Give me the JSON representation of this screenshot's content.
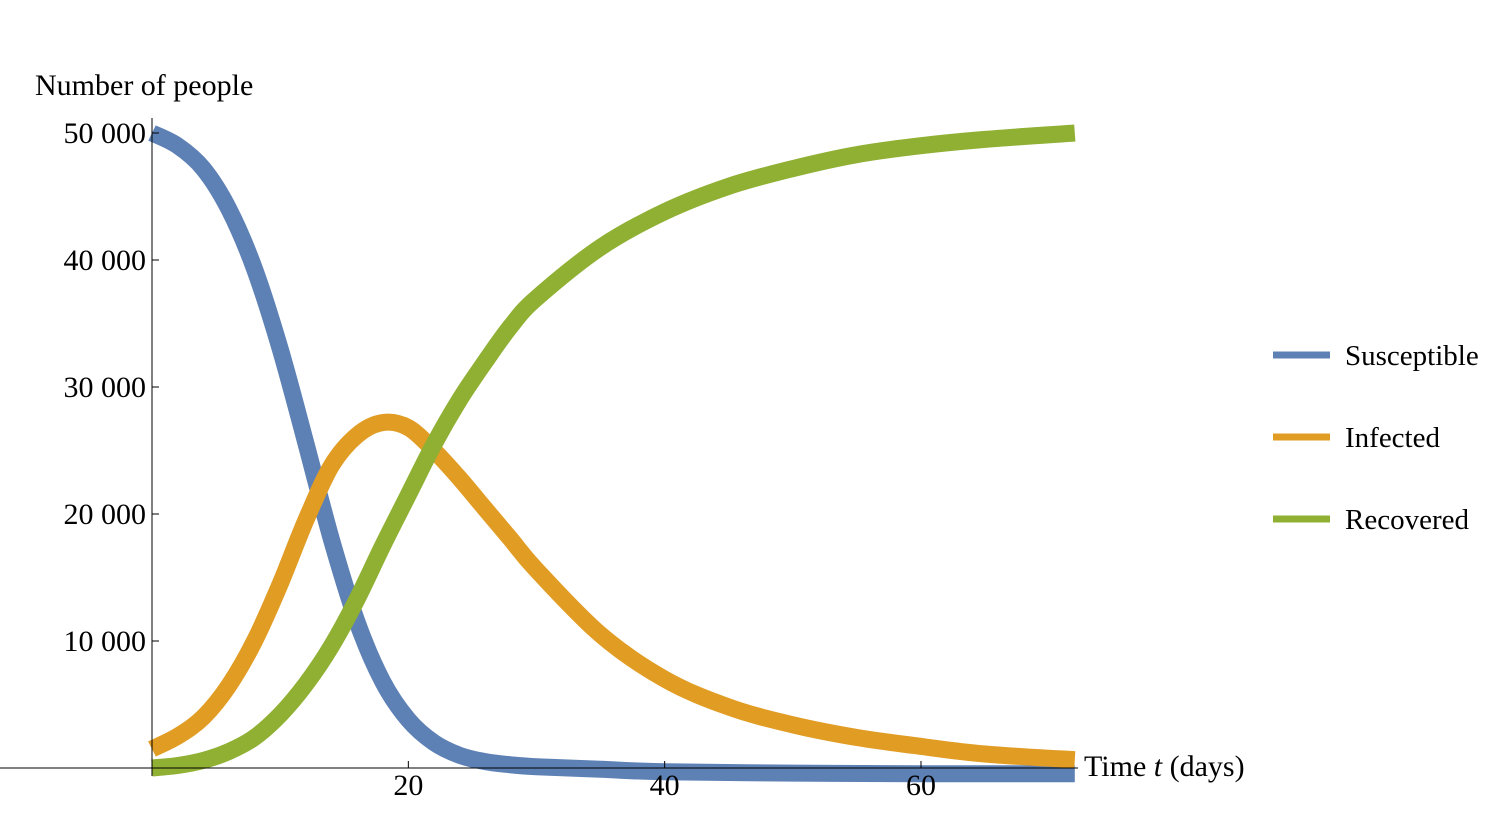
{
  "chart_data": {
    "type": "line",
    "ylabel": "Number of people",
    "xlabel_prefix": "Time ",
    "xlabel_var": "t",
    "xlabel_suffix": " (days)",
    "xlim": [
      0,
      72
    ],
    "ylim": [
      0,
      50000
    ],
    "x_ticks": [
      20,
      40,
      60
    ],
    "x_tick_labels": [
      "20",
      "40",
      "60"
    ],
    "y_ticks": [
      10000,
      20000,
      30000,
      40000,
      50000
    ],
    "y_tick_labels": [
      "10 000",
      "20 000",
      "30 000",
      "40 000",
      "50 000"
    ],
    "grid": false,
    "legend_position": "right",
    "series": [
      {
        "name": "Susceptible",
        "color": "#5E81B5",
        "x": [
          0,
          2,
          4,
          6,
          8,
          10,
          12,
          14,
          16,
          18,
          20,
          22,
          24,
          26,
          28,
          30,
          35,
          40,
          50,
          60,
          72
        ],
        "y": [
          50000,
          49000,
          47200,
          44000,
          39300,
          33000,
          25600,
          18000,
          11500,
          6800,
          3800,
          2000,
          1000,
          500,
          250,
          100,
          -100,
          -300,
          -400,
          -450,
          -450
        ]
      },
      {
        "name": "Infected",
        "color": "#E19C24",
        "x": [
          0,
          2,
          4,
          6,
          8,
          10,
          12,
          14,
          16,
          18,
          20,
          22,
          24,
          26,
          28,
          30,
          35,
          40,
          45,
          50,
          55,
          60,
          65,
          72
        ],
        "y": [
          1500,
          2500,
          4000,
          6500,
          10000,
          14500,
          19500,
          23800,
          26200,
          27200,
          26800,
          25000,
          22800,
          20400,
          18000,
          15600,
          10500,
          7000,
          4800,
          3400,
          2400,
          1700,
          1100,
          650
        ]
      },
      {
        "name": "Recovered",
        "color": "#8FB032",
        "x": [
          0,
          2,
          4,
          6,
          8,
          10,
          12,
          14,
          16,
          18,
          20,
          22,
          24,
          26,
          28,
          30,
          35,
          40,
          45,
          50,
          55,
          60,
          65,
          72
        ],
        "y": [
          0,
          200,
          600,
          1300,
          2400,
          4200,
          6600,
          9600,
          13300,
          17500,
          21500,
          25500,
          29000,
          32000,
          34800,
          37000,
          41000,
          43800,
          45800,
          47200,
          48300,
          49000,
          49500,
          50000
        ]
      }
    ]
  }
}
